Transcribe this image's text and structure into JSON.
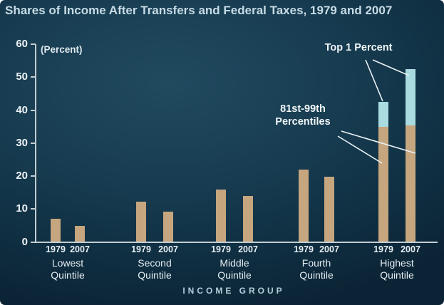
{
  "title": "Shares of Income After Transfers and Federal Taxes, 1979 and 2007",
  "colors": {
    "bar_tan": "#c5a67e",
    "bar_cyan": "#a9dbe0",
    "axis": "#c3cdd3",
    "leader_line": "#e9f1f5",
    "background_center": "#214a5f",
    "background_edge": "#0b2435",
    "title_text": "#c7dbe5"
  },
  "annotations": {
    "top1": "Top 1 Percent",
    "p8199_line1": "81st-99th",
    "p8199_line2": "Percentiles"
  },
  "chart_data": {
    "type": "bar",
    "title": "Shares of Income After Transfers and Federal Taxes, 1979 and 2007",
    "unit_label": "(Percent)",
    "xlabel": "INCOME GROUP",
    "ylim": [
      0,
      60
    ],
    "yticks": [
      0,
      10,
      20,
      30,
      40,
      50,
      60
    ],
    "grid": false,
    "legend_position": "annotated-on-chart",
    "categories": [
      "Lowest Quintile",
      "Second Quintile",
      "Middle Quintile",
      "Fourth Quintile",
      "Highest Quintile"
    ],
    "years": [
      "1979",
      "2007"
    ],
    "series": [
      {
        "name": "1979",
        "totals": [
          7.0,
          12.2,
          16.0,
          21.9,
          42.5
        ]
      },
      {
        "name": "2007",
        "totals": [
          4.9,
          9.3,
          13.9,
          19.8,
          52.5
        ]
      }
    ],
    "segment_legend": [
      {
        "key": "base",
        "label": "81st-99th Percentiles (stacked segment shown for Highest Quintile)"
      },
      {
        "key": "top1",
        "label": "Top 1 Percent"
      }
    ],
    "groups": [
      {
        "label_lines": [
          "Lowest",
          "Quintile"
        ],
        "bars": [
          {
            "year": "1979",
            "value": 7.0,
            "top1": 0
          },
          {
            "year": "2007",
            "value": 4.9,
            "top1": 0
          }
        ]
      },
      {
        "label_lines": [
          "Second",
          "Quintile"
        ],
        "bars": [
          {
            "year": "1979",
            "value": 12.2,
            "top1": 0
          },
          {
            "year": "2007",
            "value": 9.3,
            "top1": 0
          }
        ]
      },
      {
        "label_lines": [
          "Middle",
          "Quintile"
        ],
        "bars": [
          {
            "year": "1979",
            "value": 16.0,
            "top1": 0
          },
          {
            "year": "2007",
            "value": 13.9,
            "top1": 0
          }
        ]
      },
      {
        "label_lines": [
          "Fourth",
          "Quintile"
        ],
        "bars": [
          {
            "year": "1979",
            "value": 21.9,
            "top1": 0
          },
          {
            "year": "2007",
            "value": 19.8,
            "top1": 0
          }
        ]
      },
      {
        "label_lines": [
          "Highest",
          "Quintile"
        ],
        "bars": [
          {
            "year": "1979",
            "value": 35.0,
            "top1": 7.5
          },
          {
            "year": "2007",
            "value": 35.3,
            "top1": 17.2
          }
        ]
      }
    ]
  }
}
